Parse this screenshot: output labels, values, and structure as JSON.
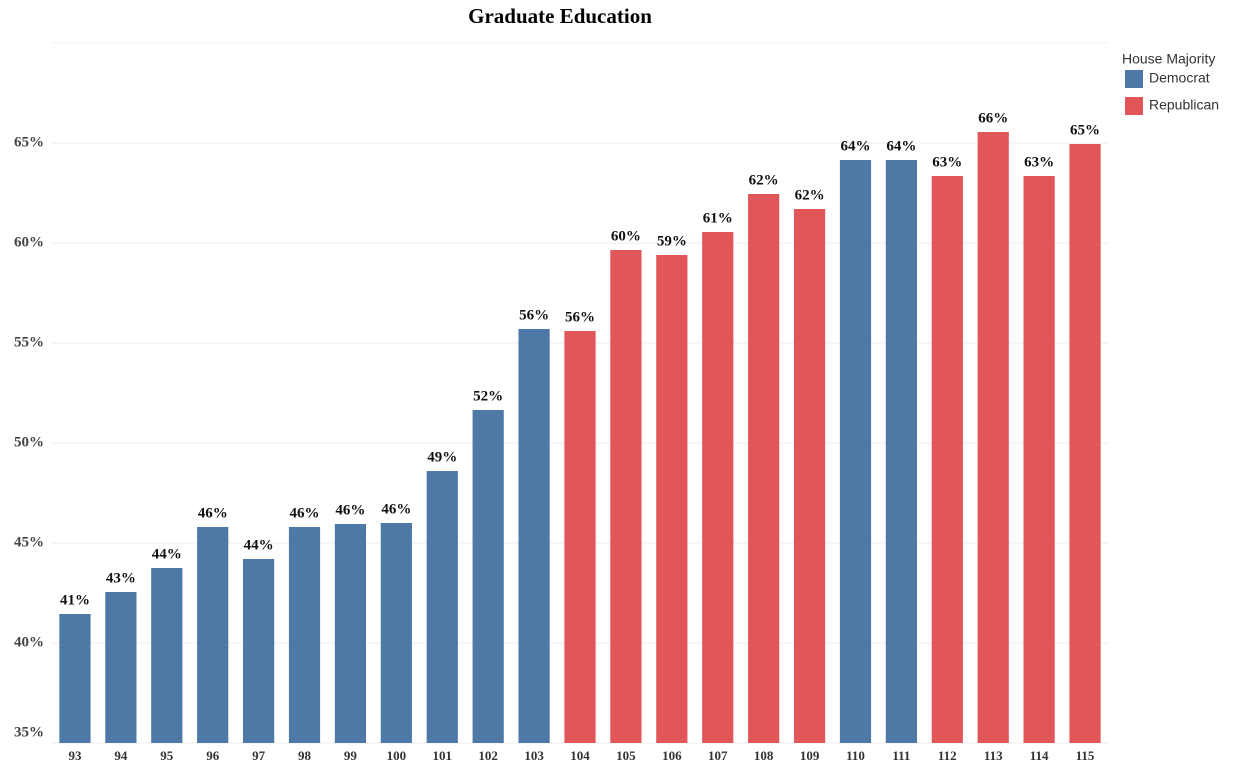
{
  "chart_data": {
    "type": "bar",
    "title": "Graduate Education",
    "legend_title": "House Majority",
    "legend": "right",
    "categories": [
      "93",
      "94",
      "95",
      "96",
      "97",
      "98",
      "99",
      "100",
      "101",
      "102",
      "103",
      "104",
      "105",
      "106",
      "107",
      "108",
      "109",
      "110",
      "111",
      "112",
      "113",
      "114",
      "115"
    ],
    "series": [
      {
        "name": "Democrat",
        "color": "#4e79a7",
        "values": [
          41.45,
          42.55,
          43.75,
          45.8,
          44.2,
          45.8,
          45.95,
          46.0,
          48.6,
          51.65,
          55.7,
          null,
          null,
          null,
          null,
          null,
          null,
          64.15,
          64.15,
          null,
          null,
          null,
          null
        ],
        "value_labels": [
          "41%",
          "43%",
          "44%",
          "46%",
          "44%",
          "46%",
          "46%",
          "46%",
          "49%",
          "52%",
          "56%",
          null,
          null,
          null,
          null,
          null,
          null,
          "64%",
          "64%",
          null,
          null,
          null,
          null
        ]
      },
      {
        "name": "Republican",
        "color": "#e15759",
        "values": [
          null,
          null,
          null,
          null,
          null,
          null,
          null,
          null,
          null,
          null,
          null,
          55.6,
          59.65,
          59.4,
          60.55,
          62.45,
          61.7,
          null,
          null,
          63.35,
          65.55,
          63.35,
          64.95
        ],
        "value_labels": [
          null,
          null,
          null,
          null,
          null,
          null,
          null,
          null,
          null,
          null,
          null,
          "56%",
          "60%",
          "59%",
          "61%",
          "62%",
          "62%",
          null,
          null,
          "63%",
          "66%",
          "63%",
          "65%"
        ]
      }
    ],
    "ylim": [
      35,
      70
    ],
    "yticks": [
      {
        "value": 35,
        "label": "35%"
      },
      {
        "value": 40,
        "label": "40%"
      },
      {
        "value": 45,
        "label": "45%"
      },
      {
        "value": 50,
        "label": "50%"
      },
      {
        "value": 55,
        "label": "55%"
      },
      {
        "value": 60,
        "label": "60%"
      },
      {
        "value": 65,
        "label": "65%"
      }
    ],
    "grid": true
  }
}
